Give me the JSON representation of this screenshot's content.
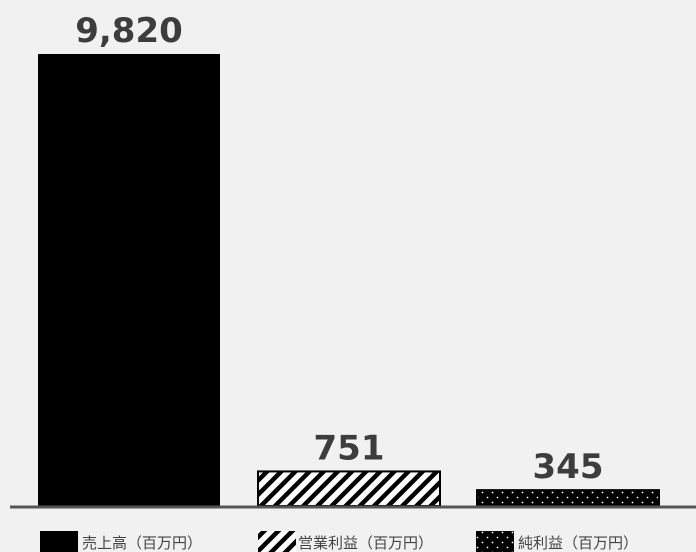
{
  "chart_data": {
    "type": "bar",
    "categories": [
      "売上高（百万円）",
      "営業利益（百万円）",
      "純利益（百万円）"
    ],
    "values": [
      9820,
      751,
      345
    ],
    "value_labels": [
      "9,820",
      "751",
      "345"
    ],
    "patterns": [
      "solid",
      "diagonal-stripes",
      "dots"
    ],
    "ylim": [
      0,
      10000
    ],
    "grid": false,
    "legend_position": "bottom",
    "colors": {
      "bar": "#000000",
      "background": "#f1f1f1",
      "axis": "#555555",
      "label": "#3d3d3d"
    }
  }
}
